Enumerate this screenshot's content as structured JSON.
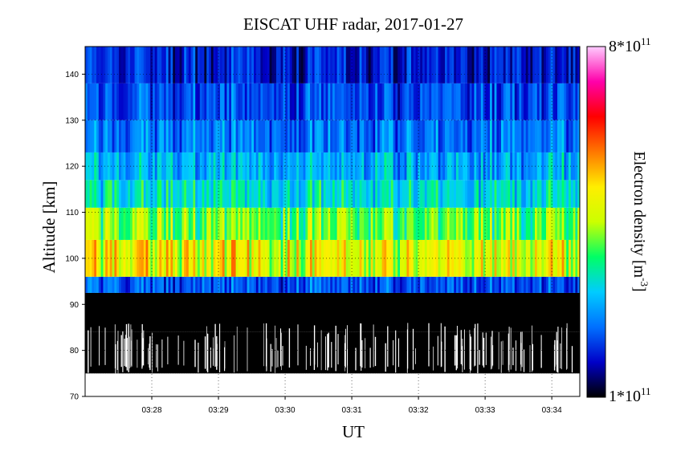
{
  "chart_data": {
    "type": "heatmap",
    "title": "EISCAT UHF radar, 2017-01-27",
    "xlabel": "UT",
    "ylabel": "Altitude [km]",
    "x_ticks": [
      "03:28",
      "03:29",
      "03:30",
      "03:31",
      "03:32",
      "03:33",
      "03:34"
    ],
    "y_ticks": [
      70,
      80,
      90,
      100,
      110,
      120,
      130,
      140
    ],
    "xlim_minutes_after_0327": [
      0.0,
      7.42
    ],
    "ylim_km": [
      70,
      146
    ],
    "grid": true,
    "colorbar": {
      "label": "Electron density [m⁻³]",
      "label_main": "Electron density [m",
      "label_exp": "-3",
      "label_close": "]",
      "min_label": "1*10",
      "min_exp": "11",
      "max_label": "8*10",
      "max_exp": "11",
      "min_value": 100000000000.0,
      "max_value": 800000000000.0,
      "colormap": [
        "#000000",
        "#0000c8",
        "#0070ff",
        "#00ccff",
        "#00ff66",
        "#ccff00",
        "#ffee00",
        "#ff7700",
        "#ff0000",
        "#ff00aa",
        "#ffccff"
      ]
    },
    "altitude_bands_km": [
      {
        "from": 70,
        "to": 75,
        "level": "none"
      },
      {
        "from": 75,
        "to": 84,
        "level": "noise",
        "mean_density_1e11": 1.0
      },
      {
        "from": 84,
        "to": 92.5,
        "level": "background",
        "mean_density_1e11": 1.0
      },
      {
        "from": 92.5,
        "to": 96,
        "level": "low",
        "mean_density_1e11": 2.2
      },
      {
        "from": 96,
        "to": 104,
        "level": "peak",
        "mean_density_1e11": 4.8
      },
      {
        "from": 104,
        "to": 111,
        "level": "high",
        "mean_density_1e11": 4.0
      },
      {
        "from": 111,
        "to": 117,
        "level": "medium",
        "mean_density_1e11": 3.2
      },
      {
        "from": 117,
        "to": 123,
        "level": "medium-low",
        "mean_density_1e11": 2.8
      },
      {
        "from": 123,
        "to": 130,
        "level": "low",
        "mean_density_1e11": 2.4
      },
      {
        "from": 130,
        "to": 138,
        "level": "low",
        "mean_density_1e11": 2.1
      },
      {
        "from": 138,
        "to": 146,
        "level": "very-low",
        "mean_density_1e11": 1.8
      }
    ]
  }
}
